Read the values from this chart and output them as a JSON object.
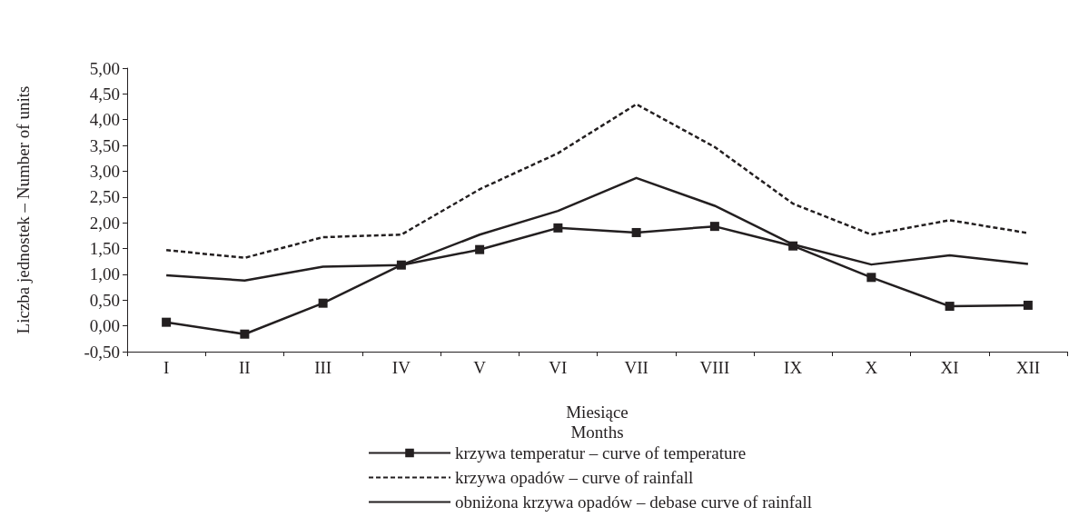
{
  "chart_data": {
    "type": "line",
    "xlabel": "Miesiące\nMonths",
    "ylabel": "Liczba jednostek – Number of units",
    "categories": [
      "I",
      "II",
      "III",
      "IV",
      "V",
      "VI",
      "VII",
      "VIII",
      "IX",
      "X",
      "XI",
      "XII"
    ],
    "series": [
      {
        "name": "krzywa temperatur – curve of temperature",
        "color": "#231f20",
        "marker": "square",
        "line_style": "solid",
        "values": [
          0.07,
          -0.16,
          0.44,
          1.18,
          1.48,
          1.9,
          1.81,
          1.93,
          1.55,
          0.94,
          0.38,
          0.4
        ]
      },
      {
        "name": "krzywa opadów – curve of rainfall",
        "color": "#231f20",
        "marker": "none",
        "line_style": "dashed",
        "values": [
          1.47,
          1.32,
          1.72,
          1.77,
          2.65,
          3.35,
          4.3,
          3.47,
          2.37,
          1.77,
          2.05,
          1.8
        ]
      },
      {
        "name": "obniżona krzywa opadów – debase curve of rainfall",
        "color": "#231f20",
        "marker": "none",
        "line_style": "solid",
        "values": [
          0.98,
          0.88,
          1.15,
          1.18,
          1.77,
          2.23,
          2.87,
          2.33,
          1.58,
          1.19,
          1.37,
          1.2
        ]
      }
    ],
    "ylim": [
      -0.5,
      5
    ],
    "yticks": [
      {
        "value": -0.5,
        "label": "-0,50"
      },
      {
        "value": 0,
        "label": "0,00"
      },
      {
        "value": 0.5,
        "label": "0,50"
      },
      {
        "value": 1,
        "label": "1,00"
      },
      {
        "value": 1.5,
        "label": "1,50"
      },
      {
        "value": 2,
        "label": "2,00"
      },
      {
        "value": 2.5,
        "label": "2,50"
      },
      {
        "value": 3,
        "label": "3,00"
      },
      {
        "value": 3.5,
        "label": "3,50"
      },
      {
        "value": 4,
        "label": "4,00"
      },
      {
        "value": 4.5,
        "label": "4,50"
      },
      {
        "value": 5,
        "label": "5,00"
      }
    ],
    "grid": false,
    "legend": "bottom"
  }
}
